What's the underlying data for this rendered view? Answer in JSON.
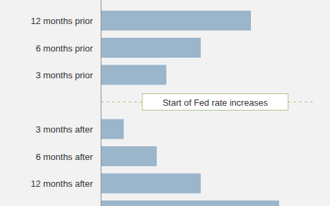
{
  "chart_data": {
    "type": "bar",
    "orientation": "horizontal",
    "categories": [
      "12 months prior",
      "6 months prior",
      "3 months prior",
      null,
      "3 months after",
      "6 months after",
      "12 months after",
      null
    ],
    "values": [
      218,
      145,
      95,
      null,
      33,
      81,
      145,
      259
    ],
    "color": "#9bb5cb",
    "xlim": [
      0,
      330
    ],
    "tick_labels": false,
    "grid": false,
    "annotation": "Start of Fed rate increases"
  }
}
